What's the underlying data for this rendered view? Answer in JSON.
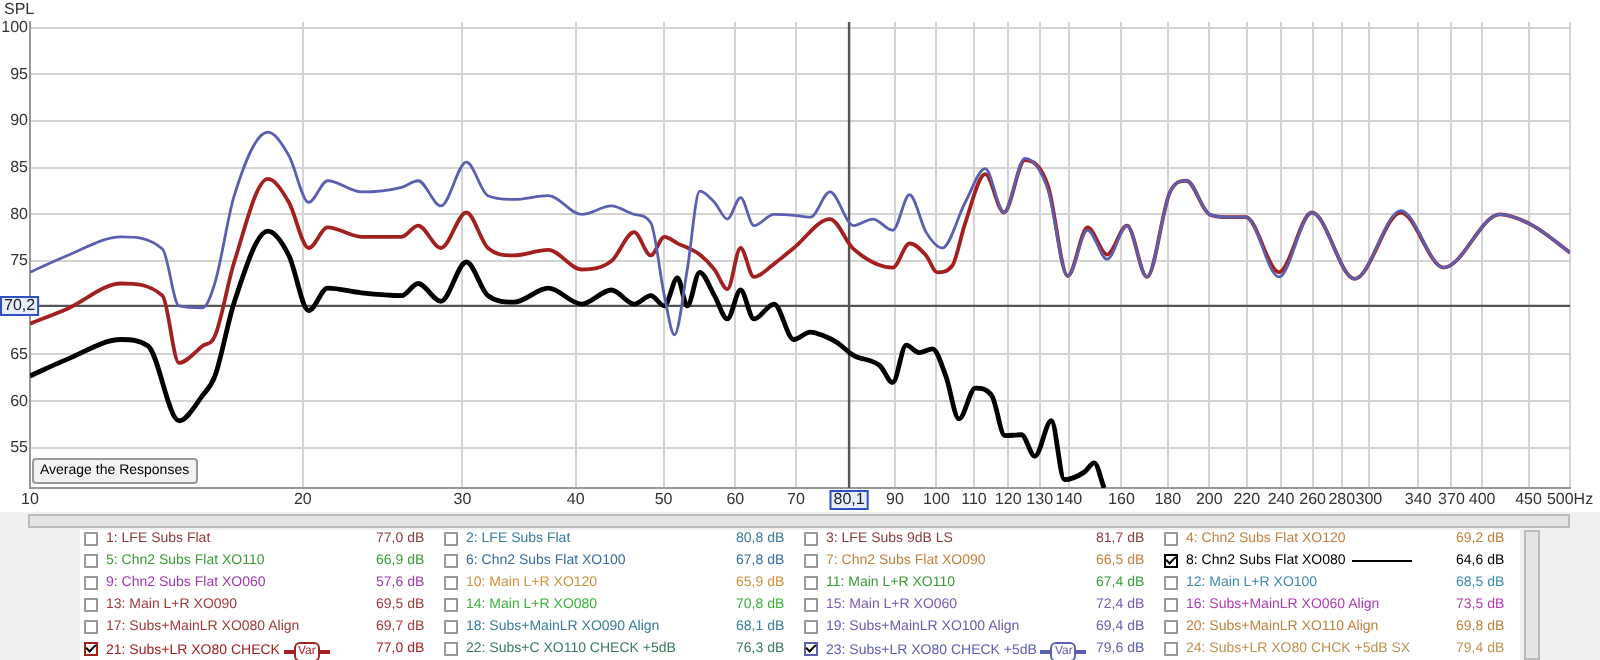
{
  "chart_data": {
    "type": "line",
    "ylabel": "SPL",
    "log": "x",
    "grid": true,
    "legend": "bottom",
    "xlim": [
      10,
      500
    ],
    "xticks": [
      10,
      20,
      30,
      40,
      50,
      60,
      70,
      90,
      100,
      110,
      120,
      130,
      140,
      160,
      180,
      200,
      220,
      240,
      260,
      280,
      300,
      340,
      370,
      400,
      450,
      {
        "value": 500,
        "label": "500Hz"
      }
    ],
    "ylim": [
      50.7,
      100.6
    ],
    "yticks": [
      55,
      60,
      65,
      75,
      80,
      85,
      90,
      95,
      100
    ],
    "ref_lines": [
      {
        "axis": "y",
        "value": 70.2,
        "label": "70,2",
        "color": "#555555"
      },
      {
        "axis": "x",
        "value": 80.1,
        "label": "80,1",
        "color": "#555555"
      }
    ],
    "series": [
      {
        "name": "8: Chn2 Subs Flat XO080",
        "color": "#000000",
        "x": [
          10,
          11.0,
          12.6,
          13.5,
          14.6,
          15.5,
          16.0,
          16.8,
          18.3,
          19.3,
          20.3,
          21.3,
          23.2,
          25.7,
          26.8,
          28.4,
          30.3,
          32.0,
          34.2,
          37.3,
          40.6,
          43.8,
          46.4,
          48.4,
          50.1,
          51.8,
          53.1,
          54.8,
          56.9,
          58.8,
          60.8,
          62.9,
          66.2,
          69.6,
          72.6,
          75.1,
          77.6,
          81.0,
          86.6,
          89.5,
          92.6,
          95.7,
          99.0,
          102.4,
          105.9,
          110.4,
          115.1,
          119.0,
          124.1,
          128.4,
          133.9,
          138.4,
          145.6,
          149.3,
          153.1
        ],
        "values": [
          62.7,
          64.5,
          66.6,
          65.9,
          57.9,
          60.6,
          62.7,
          70.6,
          78.2,
          75.6,
          69.7,
          72.1,
          71.6,
          71.3,
          72.6,
          70.7,
          74.9,
          71.3,
          70.6,
          72.1,
          70.4,
          71.9,
          70.4,
          71.3,
          70.2,
          73.2,
          70.2,
          73.8,
          71.3,
          68.8,
          71.9,
          68.8,
          70.4,
          66.6,
          67.4,
          67.0,
          66.3,
          64.9,
          63.8,
          62.0,
          66.0,
          65.2,
          65.6,
          62.7,
          58.1,
          61.4,
          60.6,
          56.3,
          56.4,
          54.1,
          57.9,
          51.6,
          52.4,
          53.4,
          50.7
        ]
      },
      {
        "name": "21: Subs+LR XO80 CHECK",
        "color": "#a32020",
        "x": [
          10,
          11.0,
          12.6,
          14.0,
          14.6,
          15.5,
          16.0,
          16.8,
          18.3,
          19.3,
          20.3,
          21.3,
          23.2,
          25.7,
          26.8,
          28.4,
          30.3,
          32.0,
          34.2,
          37.3,
          40.6,
          43.8,
          46.4,
          48.4,
          50.1,
          51.8,
          54.8,
          56.9,
          58.8,
          60.8,
          62.9,
          66.2,
          69.6,
          76.3,
          81.0,
          89.5,
          93.4,
          97.4,
          100.2,
          104.1,
          107.6,
          113.2,
          118.7,
          125.2,
          132.7,
          139.6,
          146.8,
          154.3,
          162.3,
          170.7,
          181.0,
          188.7,
          200.1,
          210.4,
          219.5,
          238.7,
          259.5,
          289.3,
          325.4,
          362.8,
          418.4,
          454.9,
          500
        ],
        "values": [
          68.3,
          69.9,
          72.6,
          71.3,
          64.1,
          65.9,
          67.0,
          74.9,
          83.8,
          81.3,
          76.4,
          78.6,
          77.6,
          77.6,
          78.8,
          76.4,
          80.2,
          76.4,
          75.6,
          76.2,
          74.1,
          75.0,
          78.1,
          75.6,
          77.6,
          76.9,
          75.7,
          74.1,
          72.0,
          76.4,
          73.3,
          74.7,
          76.4,
          79.5,
          76.3,
          74.3,
          76.9,
          75.6,
          73.8,
          74.5,
          79.1,
          84.3,
          80.2,
          85.8,
          83.1,
          73.4,
          78.6,
          75.7,
          78.8,
          73.3,
          82.4,
          83.6,
          80.0,
          79.7,
          79.7,
          73.8,
          80.2,
          73.1,
          80.2,
          74.3,
          80.0,
          78.8,
          75.9
        ]
      },
      {
        "name": "23: Subs+LR XO80 CHECK +5dB",
        "color": "#5b5fb0",
        "x": [
          10,
          11.0,
          12.6,
          14.0,
          14.6,
          15.5,
          16.0,
          16.8,
          18.3,
          19.3,
          20.3,
          21.3,
          23.2,
          25.7,
          26.8,
          28.4,
          30.3,
          32.0,
          34.2,
          37.3,
          40.6,
          43.8,
          46.4,
          48.4,
          50.1,
          51.4,
          53.1,
          54.8,
          56.9,
          58.8,
          60.8,
          62.9,
          66.2,
          69.6,
          72.6,
          76.3,
          81.0,
          85.1,
          89.5,
          93.4,
          97.4,
          101.5,
          107.6,
          113.2,
          118.7,
          125.2,
          132.7,
          139.6,
          146.8,
          154.3,
          162.3,
          170.7,
          181.0,
          188.7,
          200.1,
          210.4,
          219.5,
          238.7,
          259.5,
          289.3,
          325.4,
          362.8,
          418.4,
          454.9,
          500
        ],
        "values": [
          73.8,
          75.6,
          77.6,
          76.3,
          70.2,
          70.0,
          72.7,
          82.0,
          88.8,
          86.3,
          81.3,
          83.6,
          82.4,
          82.9,
          83.6,
          80.9,
          85.6,
          82.0,
          81.6,
          82.0,
          80.0,
          80.9,
          80.0,
          79.1,
          71.3,
          67.1,
          74.1,
          82.5,
          81.3,
          79.5,
          81.8,
          78.8,
          80.0,
          79.9,
          79.7,
          82.4,
          78.8,
          79.5,
          78.3,
          82.1,
          78.1,
          76.4,
          81.3,
          84.9,
          80.2,
          86.0,
          82.7,
          73.4,
          78.3,
          75.2,
          78.8,
          73.3,
          82.4,
          83.6,
          80.0,
          79.7,
          79.7,
          73.3,
          80.2,
          73.1,
          80.4,
          74.3,
          80.0,
          78.8,
          75.9
        ]
      }
    ],
    "annotations": [
      "Average the Responses",
      "Var",
      "1: LFE Subs Flat",
      "77,0 dB",
      "2: LFE Subs Flat",
      "80,8 dB",
      "3: LFE Subs 9dB LS",
      "81,7 dB",
      "4: Chn2 Subs Flat XO120",
      "69,2 dB",
      "5: Chn2 Subs Flat XO110",
      "66,9 dB",
      "6: Chn2 Subs Flat XO100",
      "67,8 dB",
      "7: Chn2 Subs Flat XO090",
      "66,5 dB",
      "64,6 dB",
      "9: Chn2 Subs Flat XO060",
      "57,6 dB",
      "10: Main L+R XO120",
      "65,9 dB",
      "11: Main L+R XO110",
      "67,4 dB",
      "12: Main L+R XO100",
      "68,5 dB",
      "13: Main L+R XO090",
      "69,5 dB",
      "14: Main L+R XO080",
      "70,8 dB",
      "15: Main L+R XO060",
      "72,4 dB",
      "16: Subs+MainLR XO060 Align",
      "73,5 dB",
      "17: Subs+MainLR XO080 Align",
      "69,7 dB",
      "18: Subs+MainLR XO090 Align",
      "68,1 dB",
      "19: Subs+MainLR XO100 Align",
      "69,4 dB",
      "20: Subs+MainLR XO110 Align",
      "69,8 dB",
      "77,0 dB",
      "22: Subs+C XO110 CHECK +5dB",
      "76,3 dB",
      "79,6 dB",
      "24: Subs+LR XO80 CHCK +5dB SX",
      "79,4 dB"
    ]
  }
}
